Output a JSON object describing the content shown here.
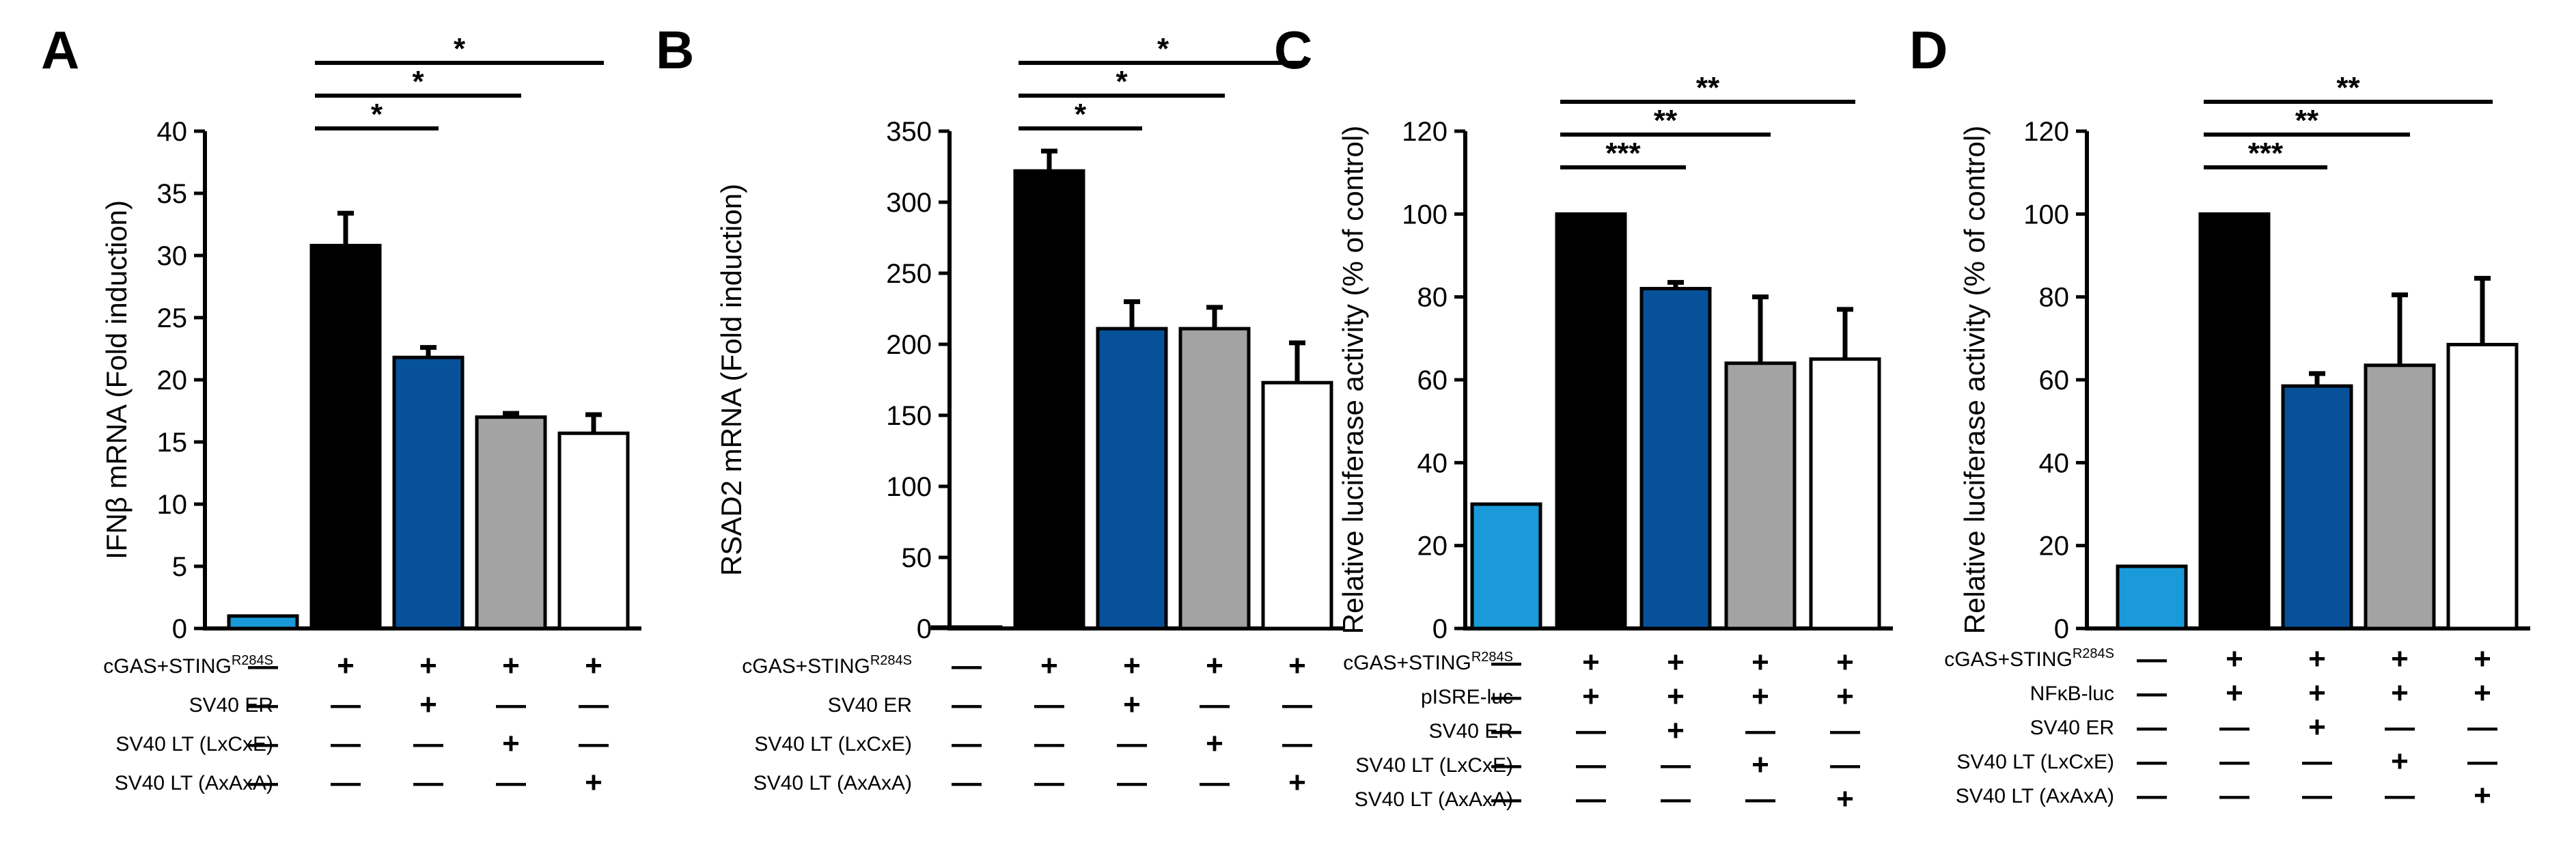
{
  "colors": {
    "light_blue": "#1a9ad9",
    "black": "#000000",
    "dark_blue": "#07519a",
    "gray": "#a3a3a3",
    "white": "#ffffff"
  },
  "chart_data": [
    {
      "panel": "A",
      "type": "bar",
      "ylabel": "IFNβ mRNA (Fold induction)",
      "ylim": [
        0,
        40
      ],
      "yticks": [
        0,
        5,
        10,
        15,
        20,
        25,
        30,
        35,
        40
      ],
      "values": [
        1.0,
        30.8,
        21.8,
        17.0,
        15.7
      ],
      "errors": [
        0,
        2.6,
        0.8,
        0.3,
        1.5
      ],
      "bar_colors": [
        "light_blue",
        "black",
        "dark_blue",
        "gray",
        "white"
      ],
      "significance": [
        {
          "from": 1,
          "to": 2,
          "label": "*"
        },
        {
          "from": 1,
          "to": 3,
          "label": "*"
        },
        {
          "from": 1,
          "to": 4,
          "label": "*"
        }
      ],
      "conditions": [
        {
          "label": "cGAS+STING",
          "sup": "R284S",
          "marks": [
            "—",
            "+",
            "+",
            "+",
            "+"
          ]
        },
        {
          "label": "SV40 ER",
          "sup": "",
          "marks": [
            "—",
            "—",
            "+",
            "—",
            "—"
          ]
        },
        {
          "label": "SV40 LT (LxCxE)",
          "sup": "",
          "marks": [
            "—",
            "—",
            "—",
            "+",
            "—"
          ]
        },
        {
          "label": "SV40 LT (AxAxA)",
          "sup": "",
          "marks": [
            "—",
            "—",
            "—",
            "—",
            "+"
          ]
        }
      ]
    },
    {
      "panel": "B",
      "type": "bar",
      "ylabel": "RSAD2 mRNA (Fold induction)",
      "ylim": [
        0,
        350
      ],
      "yticks": [
        0,
        50,
        100,
        150,
        200,
        250,
        300,
        350
      ],
      "values": [
        1.0,
        322,
        211,
        211,
        173
      ],
      "errors": [
        0,
        14,
        19,
        15,
        28
      ],
      "bar_colors": [
        "light_blue",
        "black",
        "dark_blue",
        "gray",
        "white"
      ],
      "significance": [
        {
          "from": 1,
          "to": 2,
          "label": "*"
        },
        {
          "from": 1,
          "to": 3,
          "label": "*"
        },
        {
          "from": 1,
          "to": 4,
          "label": "*"
        }
      ],
      "conditions": [
        {
          "label": "cGAS+STING",
          "sup": "R284S",
          "marks": [
            "—",
            "+",
            "+",
            "+",
            "+"
          ]
        },
        {
          "label": "SV40 ER",
          "sup": "",
          "marks": [
            "—",
            "—",
            "+",
            "—",
            "—"
          ]
        },
        {
          "label": "SV40 LT (LxCxE)",
          "sup": "",
          "marks": [
            "—",
            "—",
            "—",
            "+",
            "—"
          ]
        },
        {
          "label": "SV40 LT (AxAxA)",
          "sup": "",
          "marks": [
            "—",
            "—",
            "—",
            "—",
            "+"
          ]
        }
      ]
    },
    {
      "panel": "C",
      "type": "bar",
      "ylabel": "Relative luciferase activity (% of control)",
      "ylim": [
        0,
        120
      ],
      "yticks": [
        0,
        20,
        40,
        60,
        80,
        100,
        120
      ],
      "values": [
        30,
        100,
        82,
        64,
        65
      ],
      "errors": [
        0,
        0,
        1.5,
        16,
        12
      ],
      "bar_colors": [
        "light_blue",
        "black",
        "dark_blue",
        "gray",
        "white"
      ],
      "significance": [
        {
          "from": 1,
          "to": 2,
          "label": "***"
        },
        {
          "from": 1,
          "to": 3,
          "label": "**"
        },
        {
          "from": 1,
          "to": 4,
          "label": "**"
        }
      ],
      "conditions": [
        {
          "label": "cGAS+STING",
          "sup": "R284S",
          "marks": [
            "—",
            "+",
            "+",
            "+",
            "+"
          ]
        },
        {
          "label": "pISRE-luc",
          "sup": "",
          "marks": [
            "—",
            "+",
            "+",
            "+",
            "+"
          ]
        },
        {
          "label": "SV40 ER",
          "sup": "",
          "marks": [
            "—",
            "—",
            "+",
            "—",
            "—"
          ]
        },
        {
          "label": "SV40 LT (LxCxE)",
          "sup": "",
          "marks": [
            "—",
            "—",
            "—",
            "+",
            "—"
          ]
        },
        {
          "label": "SV40 LT (AxAxA)",
          "sup": "",
          "marks": [
            "—",
            "—",
            "—",
            "—",
            "+"
          ]
        }
      ]
    },
    {
      "panel": "D",
      "type": "bar",
      "ylabel": "Relative luciferase activity (% of control)",
      "ylim": [
        0,
        120
      ],
      "yticks": [
        0,
        20,
        40,
        60,
        80,
        100,
        120
      ],
      "values": [
        15,
        100,
        58.5,
        63.5,
        68.5
      ],
      "errors": [
        0,
        0,
        3,
        17,
        16
      ],
      "bar_colors": [
        "light_blue",
        "black",
        "dark_blue",
        "gray",
        "white"
      ],
      "significance": [
        {
          "from": 1,
          "to": 2,
          "label": "***"
        },
        {
          "from": 1,
          "to": 3,
          "label": "**"
        },
        {
          "from": 1,
          "to": 4,
          "label": "**"
        }
      ],
      "conditions": [
        {
          "label": "cGAS+STING",
          "sup": "R284S",
          "marks": [
            "—",
            "+",
            "+",
            "+",
            "+"
          ]
        },
        {
          "label": "NFκB-luc",
          "sup": "",
          "marks": [
            "—",
            "+",
            "+",
            "+",
            "+"
          ]
        },
        {
          "label": "SV40 ER",
          "sup": "",
          "marks": [
            "—",
            "—",
            "+",
            "—",
            "—"
          ]
        },
        {
          "label": "SV40 LT (LxCxE)",
          "sup": "",
          "marks": [
            "—",
            "—",
            "—",
            "+",
            "—"
          ]
        },
        {
          "label": "SV40 LT (AxAxA)",
          "sup": "",
          "marks": [
            "—",
            "—",
            "—",
            "—",
            "+"
          ]
        }
      ]
    }
  ]
}
